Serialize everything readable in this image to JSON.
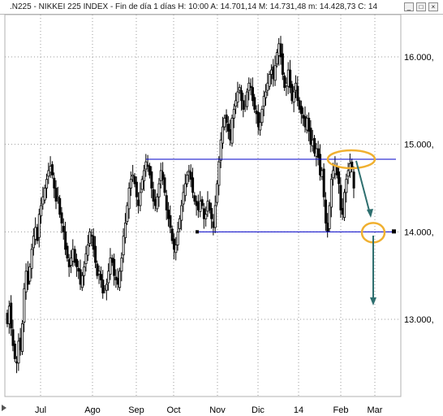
{
  "window": {
    "title": ".N225 - NIKKEI 225 INDEX - Fin de día 1 días  H: 10:00  A: 14.701,14  M: 14.731,48  m: 14.428,73  C: 14",
    "buttons": [
      "minimize-icon",
      "restore-icon",
      "close-icon"
    ]
  },
  "colors": {
    "candle": "#000000",
    "support_resistance": "#0000c8",
    "projection_arrow": "#2e6f6f",
    "highlight_ellipse": "#f0b030",
    "grid": "#9a9a9a"
  },
  "chart_data": {
    "type": "candlestick",
    "title": ".N225 - NIKKEI 225 INDEX",
    "y_ticks": [
      13000,
      14000,
      15000,
      16000
    ],
    "y_tick_labels": [
      "13.000,",
      "14.000,",
      "15.000,",
      "16.000,"
    ],
    "ylim": [
      12300,
      16650
    ],
    "x_tick_labels": [
      "Jul",
      "Ago",
      "Sep",
      "Oct",
      "Nov",
      "Dic",
      "14",
      "Feb",
      "Mar"
    ],
    "grid": true,
    "lines": [
      {
        "name": "",
        "level": 14830,
        "from": "Sep",
        "to": "Feb"
      },
      {
        "name": "",
        "level": 14000,
        "from": "Oct",
        "to": "Mar"
      }
    ],
    "close_series": [
      12950,
      13150,
      12900,
      12700,
      12550,
      12500,
      12750,
      12650,
      12950,
      13350,
      13550,
      13400,
      13600,
      13800,
      13950,
      14050,
      13900,
      14200,
      14300,
      14400,
      14500,
      14600,
      14700,
      14750,
      14650,
      14500,
      14350,
      14400,
      14200,
      14100,
      14000,
      13800,
      13700,
      13600,
      13700,
      13800,
      13650,
      13600,
      13550,
      13400,
      13500,
      13600,
      13750,
      13850,
      14000,
      13950,
      13800,
      13650,
      13500,
      13550,
      13450,
      13300,
      13350,
      13400,
      13550,
      13700,
      13650,
      13500,
      13450,
      13400,
      13550,
      13700,
      13950,
      14100,
      14300,
      14500,
      14600,
      14650,
      14550,
      14400,
      14300,
      14450,
      14600,
      14700,
      14800,
      14750,
      14650,
      14500,
      14350,
      14300,
      14400,
      14550,
      14700,
      14600,
      14450,
      14250,
      14150,
      14050,
      13900,
      13800,
      13850,
      14000,
      14150,
      14300,
      14450,
      14550,
      14650,
      14700,
      14600,
      14450,
      14350,
      14300,
      14250,
      14350,
      14300,
      14150,
      14200,
      14350,
      14250,
      14150,
      14050,
      14300,
      14550,
      14800,
      15050,
      15200,
      15300,
      15250,
      15150,
      15050,
      15300,
      15400,
      15500,
      15600,
      15650,
      15500,
      15400,
      15450,
      15600,
      15700,
      15650,
      15500,
      15400,
      15350,
      15200,
      15250,
      15400,
      15550,
      15600,
      15700,
      15800,
      15850,
      15750,
      15900,
      16050,
      16150,
      16000,
      15800,
      15650,
      15700,
      15850,
      15650,
      15500,
      15600,
      15700,
      15500,
      15400,
      15350,
      15300,
      15200,
      15300,
      15150,
      15000,
      15050,
      14900,
      14950,
      14850,
      14650,
      14700,
      14400,
      14100,
      14000,
      14300,
      14600,
      14700,
      14750,
      14650,
      14550,
      14250,
      14200,
      14450,
      14600,
      14700,
      14780,
      14720,
      14500
    ],
    "annotations": [
      "support-line",
      "resistance-line",
      "highlight-ellipse",
      "projection-arrow"
    ]
  }
}
